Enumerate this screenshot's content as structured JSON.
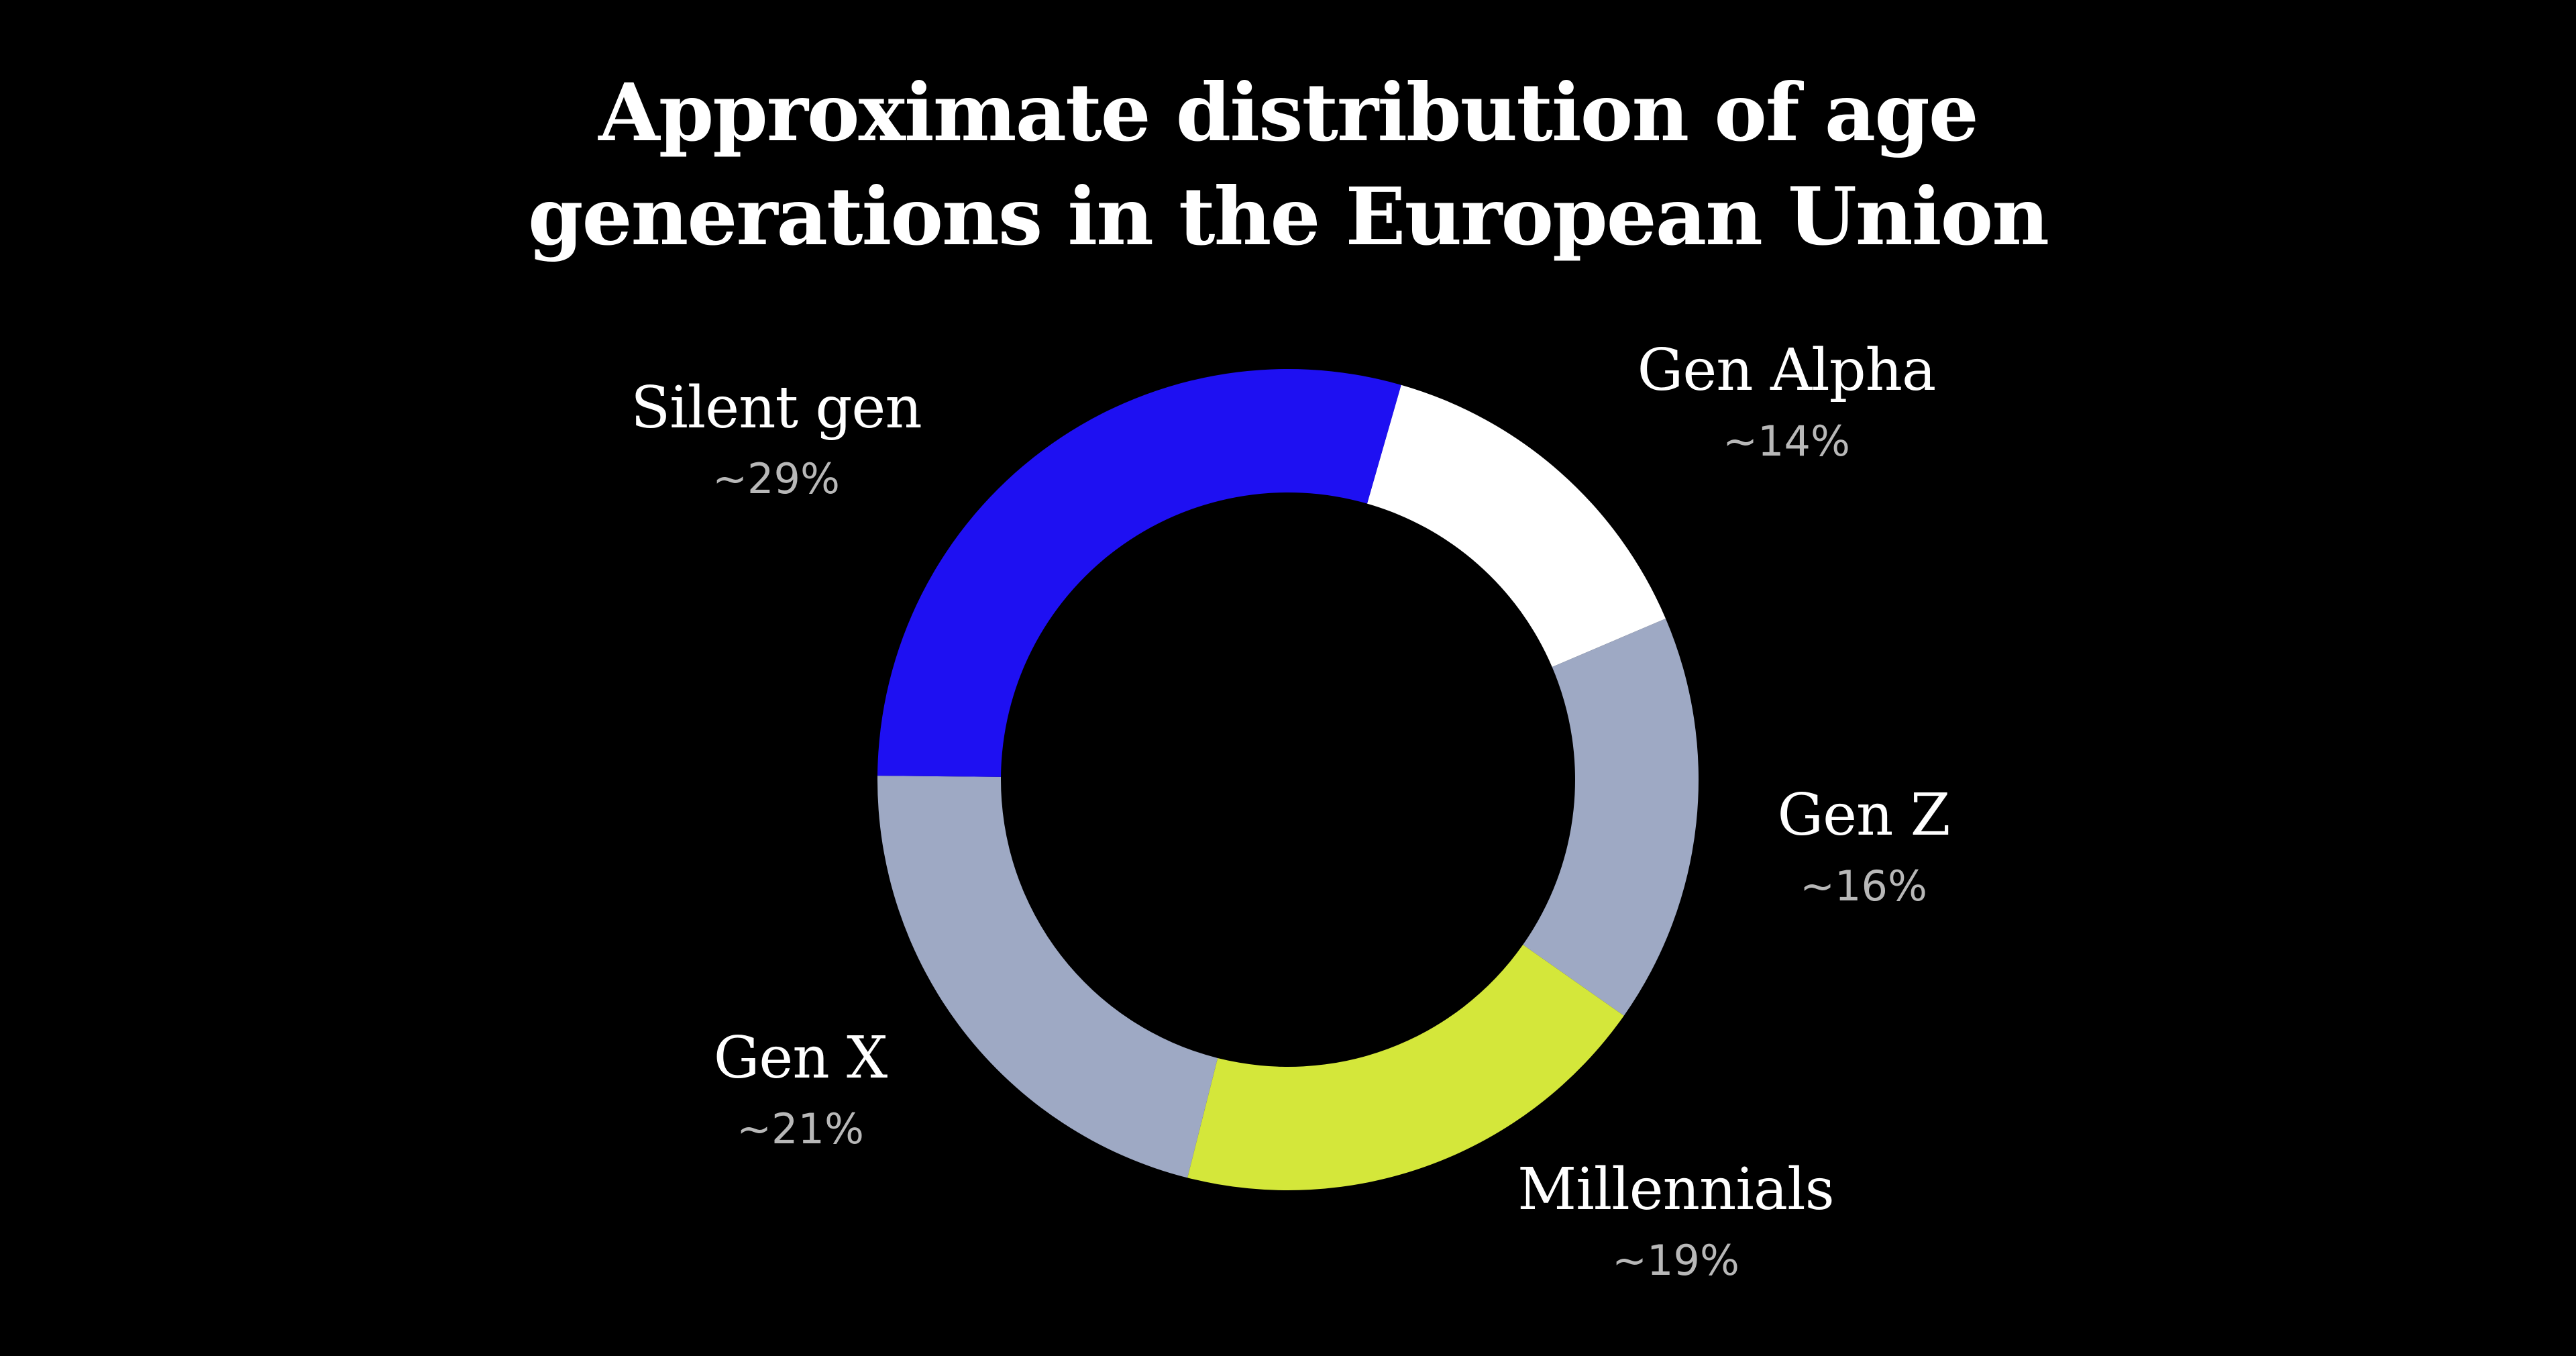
{
  "chart_data": {
    "type": "pie",
    "title_lines": [
      "Approximate distribution of age",
      "generations in the European Union"
    ],
    "labels": [
      "Gen Alpha",
      "Gen Z",
      "Millennials",
      "Gen X",
      "Silent gen"
    ],
    "value_labels": [
      "~14%",
      "~16%",
      "~19%",
      "~21%",
      "~29%"
    ],
    "values": [
      14,
      16,
      19,
      21,
      29
    ],
    "colors": [
      "#ffffff",
      "#9ea9c4",
      "#d4e73a",
      "#9ea9c4",
      "#1e10f2"
    ],
    "donut": true,
    "start_angle_deg": 16,
    "direction": "clockwise"
  },
  "background": "#000000"
}
